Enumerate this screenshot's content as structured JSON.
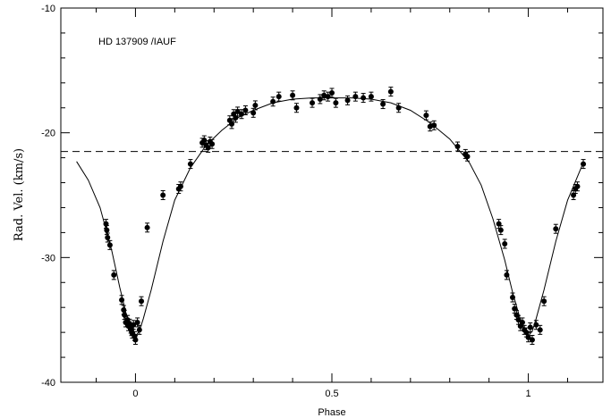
{
  "chart_data": {
    "type": "scatter",
    "annotation": "HD 137909 /IAUF",
    "xlabel": "Phase",
    "ylabel": "Rad. Vel. (km/s)",
    "xlim": [
      -0.19,
      1.19
    ],
    "ylim": [
      -40,
      -10
    ],
    "y_axis_inverted": true,
    "x_ticks": [
      0,
      0.5,
      1
    ],
    "x_tick_labels": [
      "0",
      "0.5",
      "1"
    ],
    "y_ticks": [
      -10,
      -20,
      -30,
      -40
    ],
    "y_tick_labels": [
      "-10",
      "-20",
      "-30",
      "-40"
    ],
    "grid": false,
    "legend": "none",
    "reference_line": {
      "style": "dashed",
      "y": -21.5
    },
    "fit_curve": {
      "style": "solid",
      "x": [
        -0.15,
        -0.12,
        -0.09,
        -0.06,
        -0.04,
        -0.02,
        -0.01,
        0.0,
        0.01,
        0.02,
        0.04,
        0.07,
        0.1,
        0.14,
        0.18,
        0.22,
        0.26,
        0.3,
        0.35,
        0.4,
        0.45,
        0.5,
        0.55,
        0.6,
        0.65,
        0.7,
        0.75,
        0.8,
        0.85,
        0.88,
        0.91,
        0.94,
        0.96,
        0.98,
        0.99,
        1.0,
        1.01,
        1.02,
        1.04,
        1.07,
        1.1,
        1.14
      ],
      "y": [
        -22.3,
        -23.8,
        -26.0,
        -29.5,
        -32.4,
        -35.0,
        -35.9,
        -36.3,
        -35.9,
        -34.9,
        -32.6,
        -28.7,
        -25.4,
        -22.8,
        -21.0,
        -19.8,
        -18.8,
        -18.2,
        -17.6,
        -17.3,
        -17.2,
        -17.2,
        -17.2,
        -17.3,
        -17.6,
        -18.2,
        -19.2,
        -20.5,
        -22.4,
        -24.2,
        -26.9,
        -30.2,
        -32.8,
        -35.0,
        -35.8,
        -36.3,
        -35.9,
        -34.9,
        -32.6,
        -28.7,
        -25.4,
        -22.4
      ]
    },
    "series": [
      {
        "x": [
          -0.075,
          -0.073,
          -0.071,
          -0.065,
          -0.055,
          -0.035,
          -0.03,
          -0.028,
          -0.025,
          -0.02,
          -0.018,
          -0.015,
          -0.012,
          -0.01,
          -0.008,
          -0.005,
          -0.002,
          0.0,
          0.005,
          0.01,
          0.015,
          0.03,
          0.07,
          0.11,
          0.115,
          0.14,
          0.17,
          0.175,
          0.18,
          0.185,
          0.19,
          0.195,
          0.24,
          0.245,
          0.25,
          0.255,
          0.26,
          0.27,
          0.28,
          0.3,
          0.305,
          0.35,
          0.365,
          0.4,
          0.41,
          0.45,
          0.47,
          0.48,
          0.49,
          0.5,
          0.51,
          0.54,
          0.56,
          0.58,
          0.6,
          0.63,
          0.65,
          0.67,
          0.74,
          0.75,
          0.76,
          0.82,
          0.84,
          0.845,
          0.925,
          0.93,
          0.94,
          0.945,
          0.96,
          0.965,
          0.97,
          0.975,
          0.98,
          0.985,
          0.99,
          0.995,
          1.0,
          1.005,
          1.01,
          1.02,
          1.03,
          1.04,
          1.07,
          1.115,
          1.12,
          1.125,
          1.14
        ],
        "y": [
          -27.3,
          -27.8,
          -28.4,
          -29.0,
          -31.4,
          -33.4,
          -34.2,
          -34.6,
          -35.2,
          -35.0,
          -35.5,
          -35.3,
          -35.7,
          -35.9,
          -36.1,
          -35.4,
          -36.3,
          -36.6,
          -35.2,
          -35.8,
          -33.5,
          -27.6,
          -25.0,
          -24.5,
          -24.3,
          -22.5,
          -20.8,
          -20.6,
          -21.0,
          -21.2,
          -20.7,
          -20.9,
          -19.0,
          -19.3,
          -18.5,
          -18.8,
          -18.3,
          -18.5,
          -18.2,
          -18.4,
          -17.8,
          -17.5,
          -17.1,
          -17.0,
          -18.0,
          -17.6,
          -17.3,
          -17.0,
          -17.1,
          -16.8,
          -17.6,
          -17.4,
          -17.1,
          -17.2,
          -17.1,
          -17.7,
          -16.7,
          -18.0,
          -18.6,
          -19.5,
          -19.4,
          -21.1,
          -21.7,
          -21.9,
          -27.3,
          -27.8,
          -28.9,
          -31.4,
          -33.2,
          -34.1,
          -34.6,
          -35.0,
          -35.5,
          -35.2,
          -35.8,
          -36.0,
          -36.4,
          -35.6,
          -36.6,
          -35.4,
          -35.8,
          -33.5,
          -27.7,
          -25.0,
          -24.5,
          -24.3,
          -22.5
        ]
      }
    ]
  }
}
